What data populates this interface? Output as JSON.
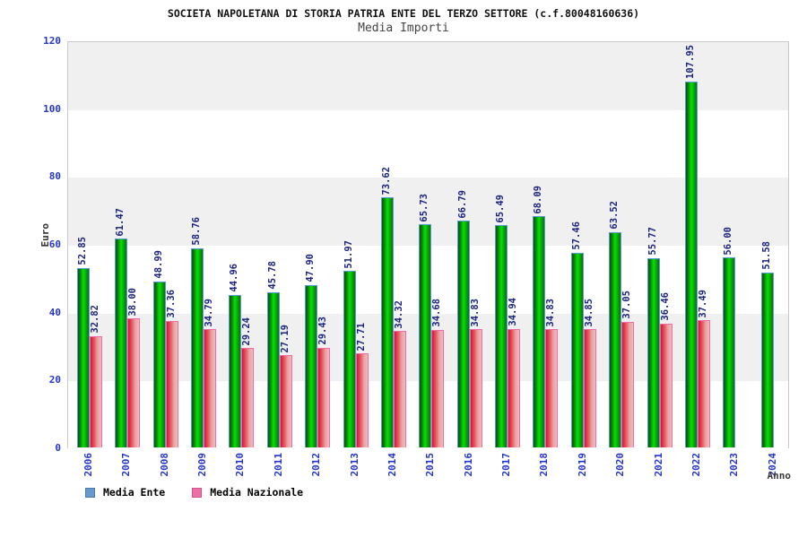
{
  "chart_data": {
    "type": "bar",
    "title": "SOCIETA NAPOLETANA DI STORIA PATRIA ENTE DEL TERZO SETTORE (c.f.80048160636)",
    "subtitle": "Media Importi",
    "ylabel": "Euro",
    "xlabel": "Anno",
    "ylim": [
      0,
      120
    ],
    "ytick_step": 20,
    "yticks": [
      0,
      20,
      40,
      60,
      80,
      100,
      120
    ],
    "grid_bands": "alternating gray/white horizontal bands, gray topmost",
    "legend_position": "bottom-left",
    "value_label_format": "2-decimals, rotated 90deg above bar",
    "categories": [
      "2006",
      "2007",
      "2008",
      "2009",
      "2010",
      "2011",
      "2012",
      "2013",
      "2014",
      "2015",
      "2016",
      "2017",
      "2018",
      "2019",
      "2020",
      "2021",
      "2022",
      "2023",
      "2024"
    ],
    "series": [
      {
        "name": "Media Ente",
        "values": [
          52.85,
          61.47,
          48.99,
          58.76,
          44.96,
          45.78,
          47.9,
          51.97,
          73.62,
          65.73,
          66.79,
          65.49,
          68.09,
          57.46,
          63.52,
          55.77,
          107.95,
          56.0,
          51.58
        ]
      },
      {
        "name": "Media Nazionale",
        "values": [
          32.82,
          38.0,
          37.36,
          34.79,
          29.24,
          27.19,
          29.43,
          27.71,
          34.32,
          34.68,
          34.83,
          34.94,
          34.83,
          34.85,
          37.05,
          36.46,
          37.49,
          null,
          null
        ]
      }
    ]
  },
  "colors": {
    "title": "#111111",
    "subtitle": "#444444",
    "tick_label_blue": "#2536cc",
    "value_label_navy": "#1c2480",
    "band_gray": "#f0f0f0",
    "band_white": "#ffffff",
    "plot_border": "#c9c9c9",
    "ente_gradient": [
      "#0a4f0a",
      "#0b8f0b",
      "#00e400",
      "#0aa50a",
      "#0a6f0a"
    ],
    "ente_outline": "#5b9bd5",
    "ente_legend_swatch": "#6699cc",
    "ente_legend_swatch_border": "#4d7ab0",
    "nazionale_gradient": [
      "#dd1133",
      "#e4555f",
      "#eba3a3",
      "#edbcbc"
    ],
    "nazionale_outline": "#f06ba8",
    "nazionale_legend_swatch": "#ee6fa8",
    "nazionale_legend_swatch_border": "#d1558c",
    "axis_title": "#333333"
  }
}
